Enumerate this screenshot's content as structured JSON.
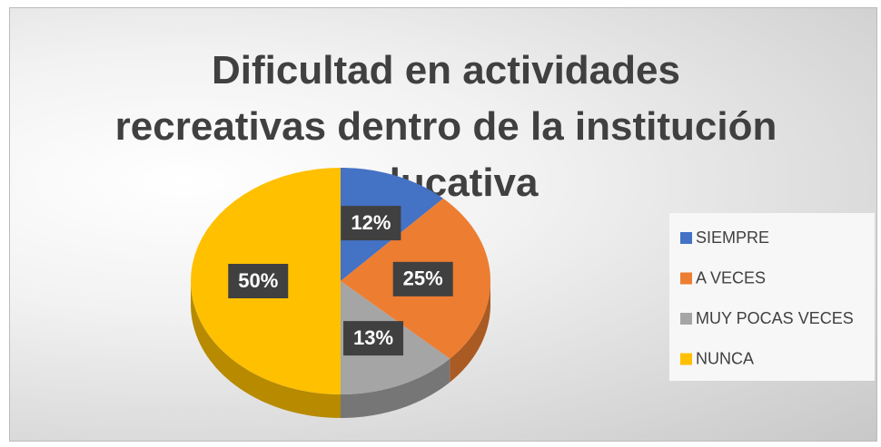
{
  "chart_data": {
    "type": "pie",
    "title": "Dificultad en actividades recreativas dentro de la institución educativa",
    "categories": [
      "SIEMPRE",
      "A VECES",
      "MUY POCAS VECES",
      "NUNCA"
    ],
    "values": [
      12,
      25,
      13,
      50
    ],
    "value_labels": [
      "12%",
      "25%",
      "13%",
      "50%"
    ],
    "colors": [
      "#4472c4",
      "#ed7d31",
      "#a5a5a5",
      "#ffc000"
    ],
    "legend": "right"
  }
}
